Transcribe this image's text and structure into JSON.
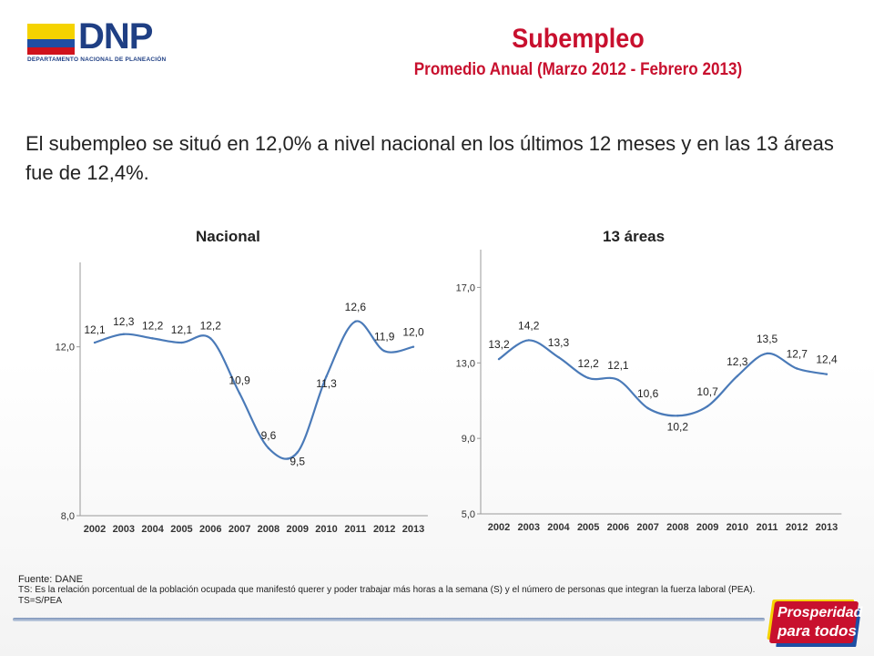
{
  "logo": {
    "word": "DNP",
    "subtitle": "DEPARTAMENTO NACIONAL DE PLANEACIÓN"
  },
  "title": "Subempleo",
  "subtitle": "Promedio Anual (Marzo 2012 -  Febrero 2013)",
  "summary": "El subempleo se situó en 12,0% a nivel nacional en los últimos 12 meses y en las 13 áreas fue de 12,4%.",
  "colors": {
    "title": "#c8102e",
    "line": "#4a7ab8"
  },
  "chart_data": [
    {
      "type": "line",
      "title": "Nacional",
      "x": [
        "2002",
        "2003",
        "2004",
        "2005",
        "2006",
        "2007",
        "2008",
        "2009",
        "2010",
        "2011",
        "2012",
        "2013"
      ],
      "values": [
        12.1,
        12.3,
        12.2,
        12.1,
        12.2,
        10.9,
        9.6,
        9.5,
        11.3,
        12.6,
        11.9,
        12.0
      ],
      "labels": [
        "12,1",
        "12,3",
        "12,2",
        "12,1",
        "12,2",
        "10,9",
        "9,6",
        "9,5",
        "11,3",
        "12,6",
        "11,9",
        "12,0"
      ],
      "yticks": [
        8.0,
        12.0
      ],
      "ytick_labels": [
        "8,0",
        "12,0"
      ],
      "ylim": [
        8.0,
        14.0
      ],
      "grid": false
    },
    {
      "type": "line",
      "title": "13 áreas",
      "x": [
        "2002",
        "2003",
        "2004",
        "2005",
        "2006",
        "2007",
        "2008",
        "2009",
        "2010",
        "2011",
        "2012",
        "2013"
      ],
      "values": [
        13.2,
        14.2,
        13.3,
        12.2,
        12.1,
        10.6,
        10.2,
        10.7,
        12.3,
        13.5,
        12.7,
        12.4
      ],
      "labels": [
        "13,2",
        "14,2",
        "13,3",
        "12,2",
        "12,1",
        "10,6",
        "10,2",
        "10,7",
        "12,3",
        "13,5",
        "12,7",
        "12,4"
      ],
      "yticks": [
        5.0,
        9.0,
        13.0,
        17.0
      ],
      "ytick_labels": [
        "5,0",
        "9,0",
        "13,0",
        "17,0"
      ],
      "ylim": [
        5.0,
        19.0
      ],
      "grid": false
    }
  ],
  "footer": {
    "source": "Fuente:  DANE",
    "note": "TS:  Es la relación porcentual de la población ocupada que manifestó querer y poder trabajar más horas a la semana (S) y el número de personas que integran la fuerza laboral (PEA). TS=S/PEA"
  },
  "brand": {
    "line1": "Prosperidad",
    "line2": "para todos"
  }
}
